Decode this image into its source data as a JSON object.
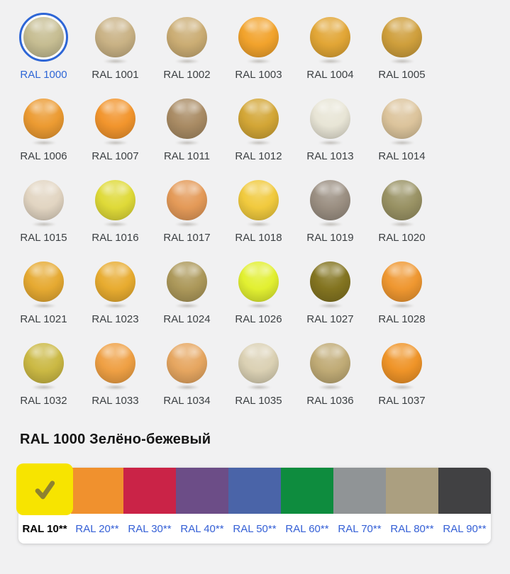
{
  "page": {
    "background": "#f1f1f2"
  },
  "palette_grid": {
    "items": [
      {
        "code": "RAL 1000",
        "color": "#c6bd92",
        "selected": true
      },
      {
        "code": "RAL 1001",
        "color": "#c9b285",
        "selected": false
      },
      {
        "code": "RAL 1002",
        "color": "#cbad74",
        "selected": false
      },
      {
        "code": "RAL 1003",
        "color": "#f2a32c",
        "selected": false
      },
      {
        "code": "RAL 1004",
        "color": "#e2a636",
        "selected": false
      },
      {
        "code": "RAL 1005",
        "color": "#cf9f3c",
        "selected": false
      },
      {
        "code": "RAL 1006",
        "color": "#ec9b32",
        "selected": false
      },
      {
        "code": "RAL 1007",
        "color": "#f2952d",
        "selected": false
      },
      {
        "code": "RAL 1011",
        "color": "#a98b64",
        "selected": false
      },
      {
        "code": "RAL 1012",
        "color": "#d3a636",
        "selected": false
      },
      {
        "code": "RAL 1013",
        "color": "#e8e5d6",
        "selected": false
      },
      {
        "code": "RAL 1014",
        "color": "#dcc49c",
        "selected": false
      },
      {
        "code": "RAL 1015",
        "color": "#e2d5c2",
        "selected": false
      },
      {
        "code": "RAL 1016",
        "color": "#dfda38",
        "selected": false
      },
      {
        "code": "RAL 1017",
        "color": "#e49a58",
        "selected": false
      },
      {
        "code": "RAL 1018",
        "color": "#f1ca3e",
        "selected": false
      },
      {
        "code": "RAL 1019",
        "color": "#9b8f82",
        "selected": false
      },
      {
        "code": "RAL 1020",
        "color": "#999264",
        "selected": false
      },
      {
        "code": "RAL 1021",
        "color": "#e6aa32",
        "selected": false
      },
      {
        "code": "RAL 1023",
        "color": "#e8ac30",
        "selected": false
      },
      {
        "code": "RAL 1024",
        "color": "#ac985a",
        "selected": false
      },
      {
        "code": "RAL 1026",
        "color": "#e2f031",
        "selected": false
      },
      {
        "code": "RAL 1027",
        "color": "#837420",
        "selected": false
      },
      {
        "code": "RAL 1028",
        "color": "#ef9730",
        "selected": false
      },
      {
        "code": "RAL 1032",
        "color": "#cbb944",
        "selected": false
      },
      {
        "code": "RAL 1033",
        "color": "#efa044",
        "selected": false
      },
      {
        "code": "RAL 1034",
        "color": "#e6a660",
        "selected": false
      },
      {
        "code": "RAL 1035",
        "color": "#dbd1b4",
        "selected": false
      },
      {
        "code": "RAL 1036",
        "color": "#c0ab76",
        "selected": false
      },
      {
        "code": "RAL 1037",
        "color": "#ef9428",
        "selected": false
      }
    ]
  },
  "detail": {
    "title": "RAL 1000 Зелёно-бежевый"
  },
  "series_bar": {
    "check_icon": "checkmark",
    "check_color": "#8d8230",
    "items": [
      {
        "label": "RAL 10**",
        "color": "#f7e400",
        "selected": true
      },
      {
        "label": "RAL 20**",
        "color": "#f0912e",
        "selected": false
      },
      {
        "label": "RAL 30**",
        "color": "#ca2347",
        "selected": false
      },
      {
        "label": "RAL 40**",
        "color": "#6c4d87",
        "selected": false
      },
      {
        "label": "RAL 50**",
        "color": "#4a64a8",
        "selected": false
      },
      {
        "label": "RAL 60**",
        "color": "#0e8c3e",
        "selected": false
      },
      {
        "label": "RAL 70**",
        "color": "#909496",
        "selected": false
      },
      {
        "label": "RAL 80**",
        "color": "#ab9f80",
        "selected": false
      },
      {
        "label": "RAL 90**",
        "color": "#414143",
        "selected": false
      }
    ]
  },
  "colors": {
    "selection_ring": "#2e66d6",
    "link_blue": "#3560d6",
    "label_gray": "#3c4043"
  }
}
